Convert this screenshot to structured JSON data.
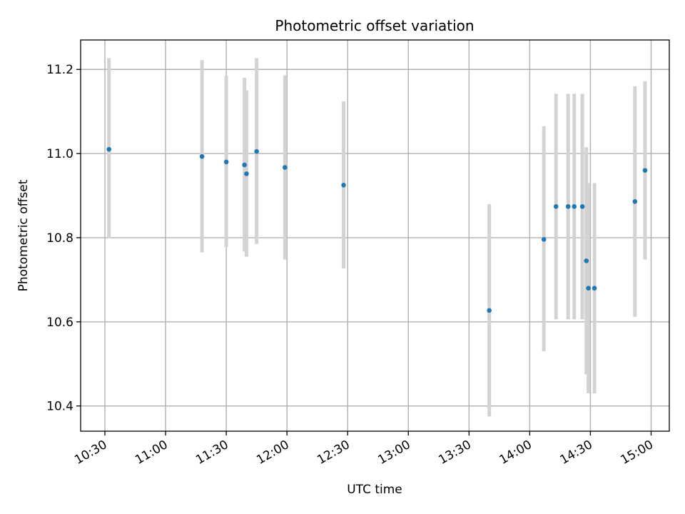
{
  "chart_data": {
    "type": "scatter",
    "title": "Photometric offset variation",
    "xlabel": "UTC time",
    "ylabel": "Photometric offset",
    "xlim": [
      "10:18",
      "15:09"
    ],
    "ylim": [
      10.34,
      11.27
    ],
    "grid": true,
    "x_ticks": [
      "10:30",
      "11:00",
      "11:30",
      "12:00",
      "12:30",
      "13:00",
      "13:30",
      "14:00",
      "14:30",
      "15:00"
    ],
    "y_ticks": [
      "10.4",
      "10.6",
      "10.8",
      "11.0",
      "11.2"
    ],
    "marker_color": "#1f77b4",
    "errorbar_color": "#d3d3d3",
    "points": [
      {
        "x": "10:32",
        "y": 11.01,
        "ymin": 10.8,
        "ymax": 11.227
      },
      {
        "x": "11:18",
        "y": 10.993,
        "ymin": 10.765,
        "ymax": 11.222
      },
      {
        "x": "11:30",
        "y": 10.98,
        "ymin": 10.778,
        "ymax": 11.185
      },
      {
        "x": "11:39",
        "y": 10.973,
        "ymin": 10.767,
        "ymax": 11.18
      },
      {
        "x": "11:40",
        "y": 10.952,
        "ymin": 10.755,
        "ymax": 11.15
      },
      {
        "x": "11:45",
        "y": 11.005,
        "ymin": 10.785,
        "ymax": 11.227
      },
      {
        "x": "11:59",
        "y": 10.967,
        "ymin": 10.748,
        "ymax": 11.186
      },
      {
        "x": "12:28",
        "y": 10.925,
        "ymin": 10.727,
        "ymax": 11.124
      },
      {
        "x": "13:40",
        "y": 10.627,
        "ymin": 10.375,
        "ymax": 10.88
      },
      {
        "x": "14:07",
        "y": 10.796,
        "ymin": 10.53,
        "ymax": 11.065
      },
      {
        "x": "14:13",
        "y": 10.874,
        "ymin": 10.606,
        "ymax": 11.142
      },
      {
        "x": "14:19",
        "y": 10.874,
        "ymin": 10.606,
        "ymax": 11.142
      },
      {
        "x": "14:22",
        "y": 10.874,
        "ymin": 10.606,
        "ymax": 11.142
      },
      {
        "x": "14:26",
        "y": 10.874,
        "ymin": 10.606,
        "ymax": 11.142
      },
      {
        "x": "14:28",
        "y": 10.745,
        "ymin": 10.475,
        "ymax": 11.015
      },
      {
        "x": "14:29",
        "y": 10.68,
        "ymin": 10.43,
        "ymax": 10.93
      },
      {
        "x": "14:32",
        "y": 10.68,
        "ymin": 10.43,
        "ymax": 10.93
      },
      {
        "x": "14:52",
        "y": 10.886,
        "ymin": 10.612,
        "ymax": 11.16
      },
      {
        "x": "14:57",
        "y": 10.96,
        "ymin": 10.748,
        "ymax": 11.172
      }
    ]
  }
}
